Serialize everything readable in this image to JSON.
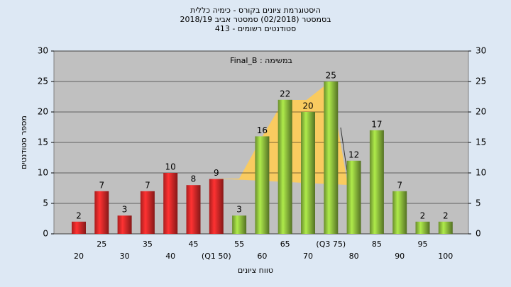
{
  "chart_data": {
    "type": "bar",
    "title": "היסטוגרמת ציונים בקורס - כימיה כללית",
    "subtitle": "בסמסטר  (02/2018)  סמסטר אביב 2018/19",
    "subtitle2": "413 - סטודנטים רשומים",
    "annotation": "Final_B : במשימה",
    "ylabel": "מספר סטודנטים",
    "xlabel": "טווח ציונים",
    "categories": [
      "20",
      "25",
      "30",
      "35",
      "40",
      "45",
      "(Q1 50)",
      "55",
      "60",
      "65",
      "70",
      "(Q3 75)",
      "80",
      "85",
      "90",
      "95",
      "100"
    ],
    "values": [
      2,
      7,
      3,
      7,
      10,
      8,
      9,
      3,
      16,
      22,
      20,
      25,
      12,
      17,
      7,
      2,
      2
    ],
    "colors": [
      "#e02828",
      "#e02828",
      "#e02828",
      "#e02828",
      "#e02828",
      "#e02828",
      "#e02828",
      "#8cbc3c",
      "#8cbc3c",
      "#8cbc3c",
      "#8cbc3c",
      "#8cbc3c",
      "#8cbc3c",
      "#8cbc3c",
      "#8cbc3c",
      "#8cbc3c",
      "#8cbc3c"
    ],
    "ylim": [
      0,
      30
    ],
    "yticks": [
      0,
      5,
      10,
      15,
      20,
      25,
      30
    ],
    "y2lim": [
      0,
      30
    ],
    "y2ticks": [
      0,
      5,
      10,
      15,
      20,
      25,
      30
    ],
    "grid": true
  }
}
